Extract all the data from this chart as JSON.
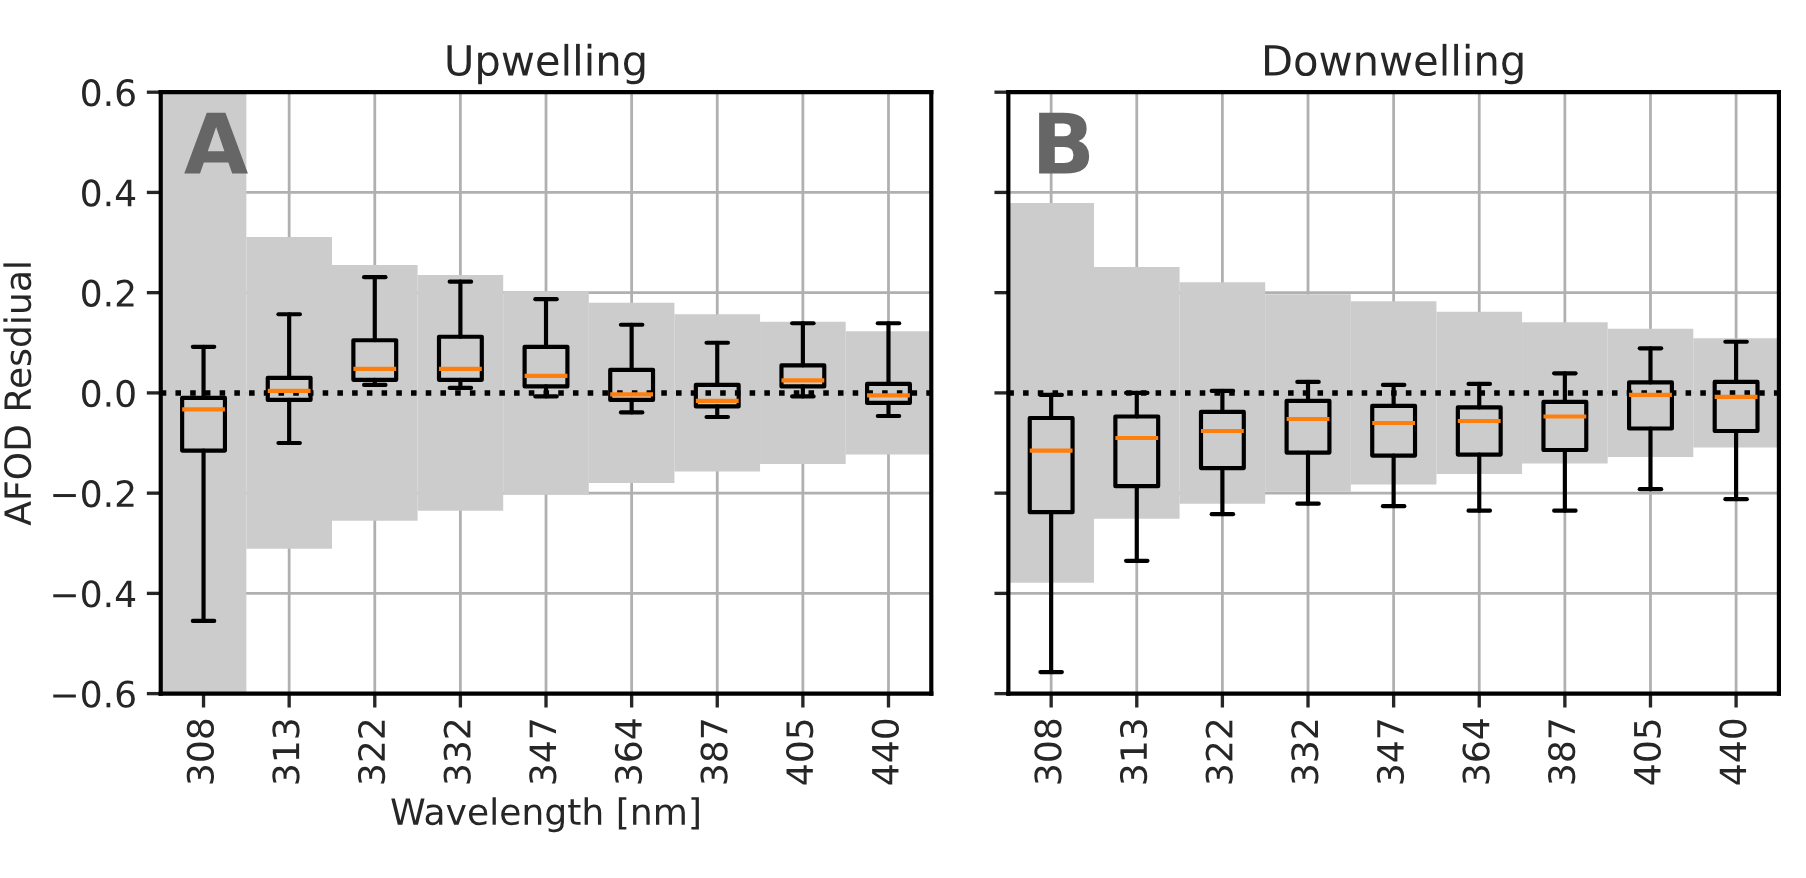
{
  "chart_data": [
    {
      "type": "box",
      "title": "Upwelling",
      "xlabel": "Wavelength [nm]",
      "ylabel": "AFOD Resdiual",
      "categories": [
        "308",
        "313",
        "322",
        "332",
        "347",
        "364",
        "387",
        "405",
        "440"
      ],
      "ylim": [
        -0.6,
        0.6
      ],
      "yticks": [
        {
          "value": -0.6,
          "label": "−0.6"
        },
        {
          "value": -0.4,
          "label": "−0.4"
        },
        {
          "value": -0.2,
          "label": "−0.2"
        },
        {
          "value": 0.0,
          "label": "0.0"
        },
        0.2,
        0.4,
        0.6
      ],
      "grid": true,
      "annotations": [
        "A"
      ],
      "ref_lines": [
        {
          "axis": "y",
          "value": 0,
          "color": "#000000",
          "line_style": "dotted"
        }
      ],
      "series": [
        {
          "type": "bar",
          "color": "#cccccc",
          "values": [
            1.2,
            0.622,
            0.51,
            0.47,
            0.406,
            0.36,
            0.314,
            0.284,
            0.246
          ],
          "base": [
            -0.6,
            -0.311,
            -0.255,
            -0.235,
            -0.203,
            -0.18,
            -0.157,
            -0.142,
            -0.123
          ]
        }
      ],
      "boxes": [
        {
          "low": -0.455,
          "q1": -0.115,
          "median": -0.033,
          "q3": -0.01,
          "high": 0.092
        },
        {
          "low": -0.1,
          "q1": -0.014,
          "median": 0.004,
          "q3": 0.03,
          "high": 0.157
        },
        {
          "low": 0.016,
          "q1": 0.026,
          "median": 0.048,
          "q3": 0.105,
          "high": 0.231
        },
        {
          "low": 0.01,
          "q1": 0.026,
          "median": 0.048,
          "q3": 0.112,
          "high": 0.222
        },
        {
          "low": -0.007,
          "q1": 0.013,
          "median": 0.034,
          "q3": 0.092,
          "high": 0.187
        },
        {
          "low": -0.039,
          "q1": -0.014,
          "median": -0.003,
          "q3": 0.046,
          "high": 0.136
        },
        {
          "low": -0.048,
          "q1": -0.027,
          "median": -0.016,
          "q3": 0.016,
          "high": 0.1
        },
        {
          "low": -0.007,
          "q1": 0.013,
          "median": 0.025,
          "q3": 0.055,
          "high": 0.139
        },
        {
          "low": -0.046,
          "q1": -0.02,
          "median": -0.005,
          "q3": 0.018,
          "high": 0.139
        }
      ]
    },
    {
      "type": "box",
      "title": "Downwelling",
      "categories": [
        "308",
        "313",
        "322",
        "332",
        "347",
        "364",
        "387",
        "405",
        "440"
      ],
      "ylim": [
        -0.6,
        0.6
      ],
      "yticks": [
        {
          "value": -0.6,
          "label": null
        },
        {
          "value": -0.4,
          "label": null
        },
        {
          "value": -0.2,
          "label": null
        },
        {
          "value": 0.0,
          "label": null
        },
        {
          "value": 0.2,
          "label": null
        },
        {
          "value": 0.4,
          "label": null
        },
        {
          "value": 0.6,
          "label": null
        }
      ],
      "tick_labels": "x",
      "grid": true,
      "annotations": [
        "B"
      ],
      "ref_lines": [
        {
          "axis": "y",
          "value": 0,
          "color": "#000000",
          "line_style": "dotted"
        }
      ],
      "series": [
        {
          "type": "bar",
          "color": "#cccccc",
          "values": [
            0.758,
            0.502,
            0.442,
            0.394,
            0.366,
            0.324,
            0.282,
            0.256,
            0.218
          ],
          "base": [
            -0.379,
            -0.251,
            -0.221,
            -0.197,
            -0.183,
            -0.162,
            -0.141,
            -0.128,
            -0.109
          ]
        }
      ],
      "boxes": [
        {
          "low": -0.557,
          "q1": -0.238,
          "median": -0.115,
          "q3": -0.05,
          "high": -0.004
        },
        {
          "low": -0.335,
          "q1": -0.186,
          "median": -0.09,
          "q3": -0.047,
          "high": 0.0
        },
        {
          "low": -0.242,
          "q1": -0.15,
          "median": -0.076,
          "q3": -0.038,
          "high": 0.004
        },
        {
          "low": -0.221,
          "q1": -0.119,
          "median": -0.052,
          "q3": -0.016,
          "high": 0.022
        },
        {
          "low": -0.226,
          "q1": -0.125,
          "median": -0.06,
          "q3": -0.026,
          "high": 0.016
        },
        {
          "low": -0.235,
          "q1": -0.123,
          "median": -0.056,
          "q3": -0.029,
          "high": 0.018
        },
        {
          "low": -0.235,
          "q1": -0.114,
          "median": -0.047,
          "q3": -0.018,
          "high": 0.039
        },
        {
          "low": -0.192,
          "q1": -0.071,
          "median": -0.004,
          "q3": 0.021,
          "high": 0.089
        },
        {
          "low": -0.212,
          "q1": -0.076,
          "median": -0.008,
          "q3": 0.022,
          "high": 0.102
        }
      ]
    }
  ]
}
